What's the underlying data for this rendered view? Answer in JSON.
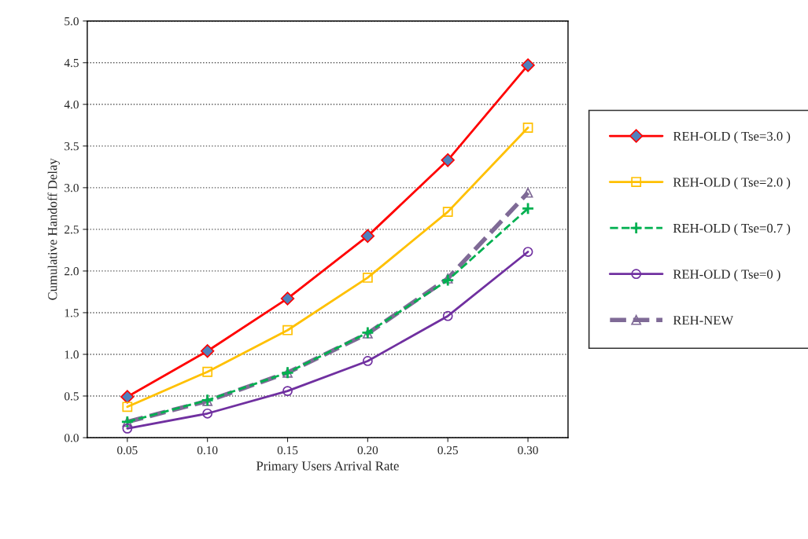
{
  "chart_data": {
    "type": "line",
    "xlabel": "Primary Users Arrival Rate",
    "ylabel": "Cumulative Handoff Delay",
    "categories": [
      "0.05",
      "0.10",
      "0.15",
      "0.20",
      "0.25",
      "0.30"
    ],
    "ylim": [
      0,
      5
    ],
    "yticks": [
      {
        "value": 0,
        "label": "0.0"
      },
      {
        "value": 0.5,
        "label": "0.5"
      },
      {
        "value": 1,
        "label": "1.0"
      },
      {
        "value": 1.5,
        "label": "1.5"
      },
      {
        "value": 2,
        "label": "2.0"
      },
      {
        "value": 2.5,
        "label": "2.5"
      },
      {
        "value": 3,
        "label": "3.0"
      },
      {
        "value": 3.5,
        "label": "3.5"
      },
      {
        "value": 4,
        "label": "4.0"
      },
      {
        "value": 4.5,
        "label": "4.5"
      },
      {
        "value": 5,
        "label": "5.0"
      }
    ],
    "grid": "y",
    "legend": "right",
    "series": [
      {
        "name": "REH-OLD ( Tse=3.0 )",
        "color": "#ff0000",
        "marker": "diamond",
        "line_style": "solid",
        "values": [
          0.49,
          1.04,
          1.67,
          2.42,
          3.33,
          4.47
        ]
      },
      {
        "name": "REH-OLD ( Tse=2.0 )",
        "color": "#ffc000",
        "marker": "square",
        "line_style": "solid",
        "values": [
          0.37,
          0.79,
          1.29,
          1.92,
          2.71,
          3.72
        ]
      },
      {
        "name": "REH-OLD ( Tse=0.7 )",
        "color": "#00b050",
        "marker": "cross",
        "line_style": "dashed",
        "values": [
          0.19,
          0.45,
          0.78,
          1.26,
          1.89,
          2.75
        ]
      },
      {
        "name": "REH-OLD ( Tse=0 )",
        "color": "#7030a0",
        "marker": "circle",
        "line_style": "solid",
        "values": [
          0.11,
          0.29,
          0.56,
          0.92,
          1.46,
          2.23
        ]
      },
      {
        "name": "REH-NEW",
        "color": "#7f6a96",
        "marker": "triangle",
        "line_style": "dashed",
        "values": [
          0.19,
          0.44,
          0.78,
          1.25,
          1.91,
          2.94
        ]
      }
    ]
  }
}
